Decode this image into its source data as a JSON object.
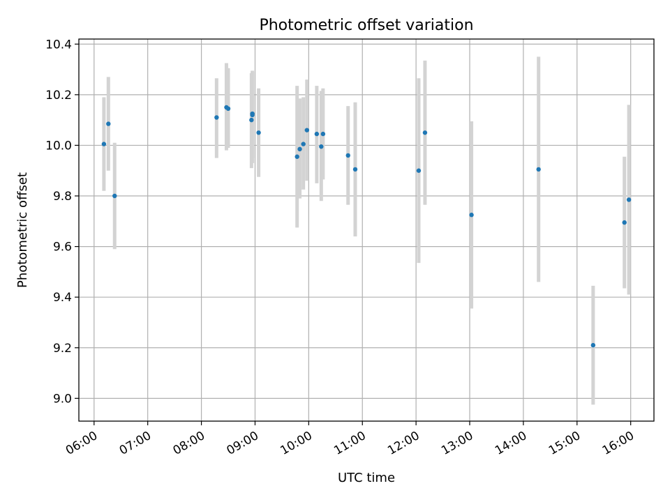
{
  "chart_data": {
    "type": "scatter",
    "title": "Photometric offset variation",
    "xlabel": "UTC time",
    "ylabel": "Photometric offset",
    "x_unit": "hours UTC",
    "xlim": [
      "05:43",
      "16:26"
    ],
    "ylim": [
      8.91,
      10.42
    ],
    "x_ticks": [
      "06:00",
      "07:00",
      "08:00",
      "09:00",
      "10:00",
      "11:00",
      "12:00",
      "13:00",
      "14:00",
      "15:00",
      "16:00"
    ],
    "y_ticks": [
      "9.0",
      "9.2",
      "9.4",
      "9.6",
      "9.8",
      "10.0",
      "10.2",
      "10.4"
    ],
    "grid": true,
    "errorbar_color": "#d3d3d3",
    "point_color": "#1f77b4",
    "points": [
      {
        "x": "06:11",
        "y": 10.005,
        "err_low": 9.82,
        "err_high": 10.19
      },
      {
        "x": "06:16",
        "y": 10.085,
        "err_low": 9.9,
        "err_high": 10.27
      },
      {
        "x": "06:23",
        "y": 9.8,
        "err_low": 9.59,
        "err_high": 10.01
      },
      {
        "x": "08:17",
        "y": 10.11,
        "err_low": 9.95,
        "err_high": 10.265
      },
      {
        "x": "08:28",
        "y": 10.15,
        "err_low": 9.98,
        "err_high": 10.325
      },
      {
        "x": "08:30",
        "y": 10.145,
        "err_low": 9.99,
        "err_high": 10.305
      },
      {
        "x": "08:56",
        "y": 10.1,
        "err_low": 9.91,
        "err_high": 10.285
      },
      {
        "x": "08:57",
        "y": 10.125,
        "err_low": 9.93,
        "err_high": 10.295
      },
      {
        "x": "08:57",
        "y": 10.12,
        "err_low": 9.95,
        "err_high": 10.29
      },
      {
        "x": "09:04",
        "y": 10.05,
        "err_low": 9.875,
        "err_high": 10.225
      },
      {
        "x": "09:47",
        "y": 9.955,
        "err_low": 9.675,
        "err_high": 10.235
      },
      {
        "x": "09:50",
        "y": 9.985,
        "err_low": 9.79,
        "err_high": 10.185
      },
      {
        "x": "09:54",
        "y": 10.005,
        "err_low": 9.825,
        "err_high": 10.19
      },
      {
        "x": "09:58",
        "y": 10.06,
        "err_low": 9.86,
        "err_high": 10.26
      },
      {
        "x": "10:09",
        "y": 10.045,
        "err_low": 9.85,
        "err_high": 10.235
      },
      {
        "x": "10:14",
        "y": 9.995,
        "err_low": 9.78,
        "err_high": 10.215
      },
      {
        "x": "10:16",
        "y": 10.045,
        "err_low": 9.865,
        "err_high": 10.225
      },
      {
        "x": "10:44",
        "y": 9.96,
        "err_low": 9.765,
        "err_high": 10.155
      },
      {
        "x": "10:52",
        "y": 9.905,
        "err_low": 9.64,
        "err_high": 10.17
      },
      {
        "x": "12:03",
        "y": 9.9,
        "err_low": 9.535,
        "err_high": 10.265
      },
      {
        "x": "12:10",
        "y": 10.05,
        "err_low": 9.765,
        "err_high": 10.335
      },
      {
        "x": "13:02",
        "y": 9.725,
        "err_low": 9.355,
        "err_high": 10.095
      },
      {
        "x": "14:17",
        "y": 9.905,
        "err_low": 9.46,
        "err_high": 10.35
      },
      {
        "x": "15:18",
        "y": 9.21,
        "err_low": 8.975,
        "err_high": 9.445
      },
      {
        "x": "15:53",
        "y": 9.695,
        "err_low": 9.435,
        "err_high": 9.955
      },
      {
        "x": "15:58",
        "y": 9.785,
        "err_low": 9.41,
        "err_high": 10.16
      }
    ]
  }
}
